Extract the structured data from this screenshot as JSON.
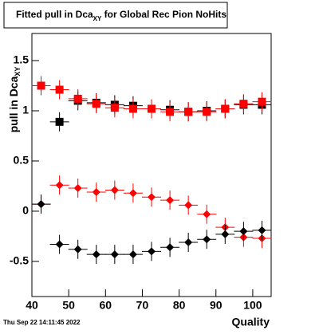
{
  "chart_data": {
    "type": "scatter",
    "title": "Fitted pull in Dca",
    "title_sub": "XY",
    "title_rest": " for Global Rec Pion NoHits",
    "y_label": "pull in Dca",
    "y_label_sub": "XY",
    "x_label": "Quality",
    "footer": "Thu Sep 22 14:11:45 2022",
    "xlim": [
      40,
      105
    ],
    "xticks": [
      40,
      50,
      60,
      70,
      80,
      90,
      100
    ],
    "ylim": [
      -0.85,
      1.77
    ],
    "yticks": [
      -0.5,
      0,
      0.5,
      1,
      1.5
    ],
    "series": [
      {
        "color": "#000000",
        "marker": "square",
        "x": [
          47.5,
          52.5,
          57.5,
          62.5,
          67.5,
          72.5,
          77.5,
          82.5,
          87.5,
          92.5,
          97.5,
          102.5
        ],
        "values": [
          0.89,
          1.1,
          1.08,
          1.06,
          1.05,
          1.02,
          1.01,
          0.99,
          1.0,
          1.02,
          1.06,
          1.06
        ]
      },
      {
        "color": "#ff0000",
        "marker": "square",
        "x": [
          42.5,
          47.5,
          52.5,
          57.5,
          62.5,
          67.5,
          72.5,
          77.5,
          82.5,
          87.5,
          92.5,
          97.5,
          102.5
        ],
        "values": [
          1.25,
          1.21,
          1.12,
          1.07,
          1.03,
          1.02,
          1.02,
          0.99,
          0.99,
          0.99,
          1.02,
          1.07,
          1.09
        ]
      },
      {
        "color": "#ff0000",
        "marker": "diamond",
        "x": [
          42.5,
          47.5,
          52.5,
          57.5,
          62.5,
          67.5,
          72.5,
          77.5,
          82.5,
          87.5,
          92.5,
          97.5,
          102.5
        ],
        "values": [
          0.07,
          0.26,
          0.23,
          0.19,
          0.21,
          0.18,
          0.14,
          0.11,
          0.06,
          -0.03,
          -0.16,
          -0.26,
          -0.27
        ]
      },
      {
        "color": "#000000",
        "marker": "diamond",
        "x": [
          42.5,
          47.5,
          52.5,
          57.5,
          62.5,
          67.5,
          72.5,
          77.5,
          82.5,
          87.5,
          92.5,
          97.5,
          102.5
        ],
        "values": [
          0.07,
          -0.33,
          -0.38,
          -0.43,
          -0.43,
          -0.43,
          -0.4,
          -0.36,
          -0.31,
          -0.28,
          -0.23,
          -0.2,
          -0.19
        ]
      }
    ]
  }
}
